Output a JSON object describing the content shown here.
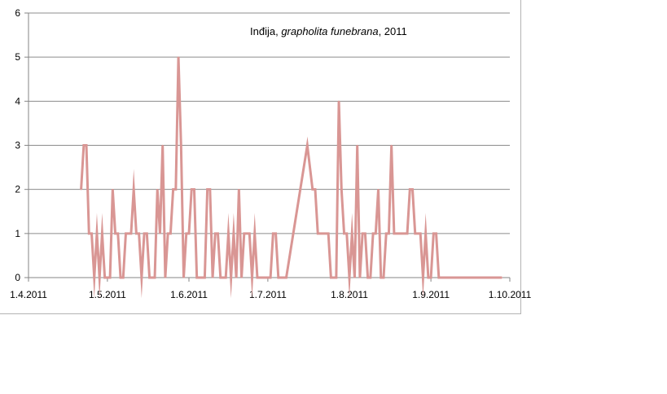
{
  "chart_data": {
    "type": "line",
    "title_parts": [
      {
        "text": "Inđija, ",
        "italic": false
      },
      {
        "text": "grapholita funebrana",
        "italic": true
      },
      {
        "text": ", 2011",
        "italic": false
      }
    ],
    "xlabel": "",
    "ylabel": "",
    "x_tick_labels": [
      "1.4.2011",
      "1.5.2011",
      "1.6.2011",
      "1.7.2011",
      "1.8.2011",
      "1.9.2011",
      "1.10.2011"
    ],
    "x_ticks": [
      "2011-04-01",
      "2011-05-01",
      "2011-06-01",
      "2011-07-01",
      "2011-08-01",
      "2011-09-01",
      "2011-10-01"
    ],
    "xlim": [
      "2011-04-01",
      "2011-10-01"
    ],
    "ylim": [
      0,
      6
    ],
    "y_ticks": [
      0,
      1,
      2,
      3,
      4,
      5,
      6
    ],
    "grid": "horizontal",
    "legend": "none",
    "line_color": "#d99694",
    "series": [
      {
        "points": [
          [
            "2011-04-21",
            2
          ],
          [
            "2011-04-22",
            3
          ],
          [
            "2011-04-23",
            3
          ],
          [
            "2011-04-24",
            1
          ],
          [
            "2011-04-25",
            1
          ],
          [
            "2011-04-26",
            0
          ],
          [
            "2011-04-27",
            1
          ],
          [
            "2011-04-28",
            0
          ],
          [
            "2011-04-29",
            1
          ],
          [
            "2011-04-30",
            0
          ],
          [
            "2011-05-01",
            0
          ],
          [
            "2011-05-02",
            0
          ],
          [
            "2011-05-03",
            2
          ],
          [
            "2011-05-04",
            1
          ],
          [
            "2011-05-05",
            1
          ],
          [
            "2011-05-06",
            0
          ],
          [
            "2011-05-07",
            0
          ],
          [
            "2011-05-08",
            1
          ],
          [
            "2011-05-09",
            1
          ],
          [
            "2011-05-10",
            1
          ],
          [
            "2011-05-11",
            2
          ],
          [
            "2011-05-12",
            1
          ],
          [
            "2011-05-13",
            1
          ],
          [
            "2011-05-14",
            0
          ],
          [
            "2011-05-15",
            1
          ],
          [
            "2011-05-16",
            1
          ],
          [
            "2011-05-17",
            0
          ],
          [
            "2011-05-18",
            0
          ],
          [
            "2011-05-19",
            0
          ],
          [
            "2011-05-20",
            2
          ],
          [
            "2011-05-21",
            1
          ],
          [
            "2011-05-22",
            3
          ],
          [
            "2011-05-23",
            0
          ],
          [
            "2011-05-24",
            1
          ],
          [
            "2011-05-25",
            1
          ],
          [
            "2011-05-26",
            2
          ],
          [
            "2011-05-27",
            2
          ],
          [
            "2011-05-28",
            5
          ],
          [
            "2011-05-29",
            3
          ],
          [
            "2011-05-30",
            0
          ],
          [
            "2011-05-31",
            1
          ],
          [
            "2011-06-01",
            1
          ],
          [
            "2011-06-02",
            2
          ],
          [
            "2011-06-03",
            2
          ],
          [
            "2011-06-04",
            0
          ],
          [
            "2011-06-05",
            0
          ],
          [
            "2011-06-06",
            0
          ],
          [
            "2011-06-07",
            0
          ],
          [
            "2011-06-08",
            2
          ],
          [
            "2011-06-09",
            2
          ],
          [
            "2011-06-10",
            0
          ],
          [
            "2011-06-11",
            1
          ],
          [
            "2011-06-12",
            1
          ],
          [
            "2011-06-13",
            0
          ],
          [
            "2011-06-14",
            0
          ],
          [
            "2011-06-15",
            0
          ],
          [
            "2011-06-16",
            1
          ],
          [
            "2011-06-17",
            0
          ],
          [
            "2011-06-18",
            1
          ],
          [
            "2011-06-19",
            0
          ],
          [
            "2011-06-20",
            2
          ],
          [
            "2011-06-21",
            0
          ],
          [
            "2011-06-22",
            1
          ],
          [
            "2011-06-23",
            1
          ],
          [
            "2011-06-24",
            1
          ],
          [
            "2011-06-25",
            0
          ],
          [
            "2011-06-26",
            1
          ],
          [
            "2011-06-27",
            0
          ],
          [
            "2011-06-28",
            0
          ],
          [
            "2011-06-29",
            0
          ],
          [
            "2011-06-30",
            0
          ],
          [
            "2011-07-01",
            0
          ],
          [
            "2011-07-02",
            0
          ],
          [
            "2011-07-03",
            1
          ],
          [
            "2011-07-04",
            1
          ],
          [
            "2011-07-05",
            0
          ],
          [
            "2011-07-06",
            0
          ],
          [
            "2011-07-07",
            0
          ],
          [
            "2011-07-08",
            0
          ],
          [
            "2011-07-16",
            3
          ],
          [
            "2011-07-18",
            2
          ],
          [
            "2011-07-19",
            2
          ],
          [
            "2011-07-20",
            1
          ],
          [
            "2011-07-21",
            1
          ],
          [
            "2011-07-22",
            1
          ],
          [
            "2011-07-23",
            1
          ],
          [
            "2011-07-24",
            1
          ],
          [
            "2011-07-25",
            0
          ],
          [
            "2011-07-26",
            0
          ],
          [
            "2011-07-27",
            0
          ],
          [
            "2011-07-28",
            4
          ],
          [
            "2011-07-29",
            2
          ],
          [
            "2011-07-30",
            1
          ],
          [
            "2011-07-31",
            1
          ],
          [
            "2011-08-01",
            0
          ],
          [
            "2011-08-02",
            1
          ],
          [
            "2011-08-03",
            0
          ],
          [
            "2011-08-04",
            3
          ],
          [
            "2011-08-05",
            0
          ],
          [
            "2011-08-06",
            1
          ],
          [
            "2011-08-07",
            1
          ],
          [
            "2011-08-08",
            0
          ],
          [
            "2011-08-09",
            0
          ],
          [
            "2011-08-10",
            1
          ],
          [
            "2011-08-11",
            1
          ],
          [
            "2011-08-12",
            2
          ],
          [
            "2011-08-13",
            0
          ],
          [
            "2011-08-14",
            0
          ],
          [
            "2011-08-15",
            1
          ],
          [
            "2011-08-16",
            1
          ],
          [
            "2011-08-17",
            3
          ],
          [
            "2011-08-18",
            1
          ],
          [
            "2011-08-19",
            1
          ],
          [
            "2011-08-20",
            1
          ],
          [
            "2011-08-21",
            1
          ],
          [
            "2011-08-22",
            1
          ],
          [
            "2011-08-23",
            1
          ],
          [
            "2011-08-24",
            2
          ],
          [
            "2011-08-25",
            2
          ],
          [
            "2011-08-26",
            1
          ],
          [
            "2011-08-27",
            1
          ],
          [
            "2011-08-28",
            1
          ],
          [
            "2011-08-29",
            0
          ],
          [
            "2011-08-30",
            1
          ],
          [
            "2011-08-31",
            0
          ],
          [
            "2011-09-01",
            0
          ],
          [
            "2011-09-02",
            1
          ],
          [
            "2011-09-03",
            1
          ],
          [
            "2011-09-04",
            0
          ],
          [
            "2011-09-10",
            0
          ],
          [
            "2011-09-20",
            0
          ],
          [
            "2011-09-28",
            0
          ]
        ]
      }
    ]
  }
}
